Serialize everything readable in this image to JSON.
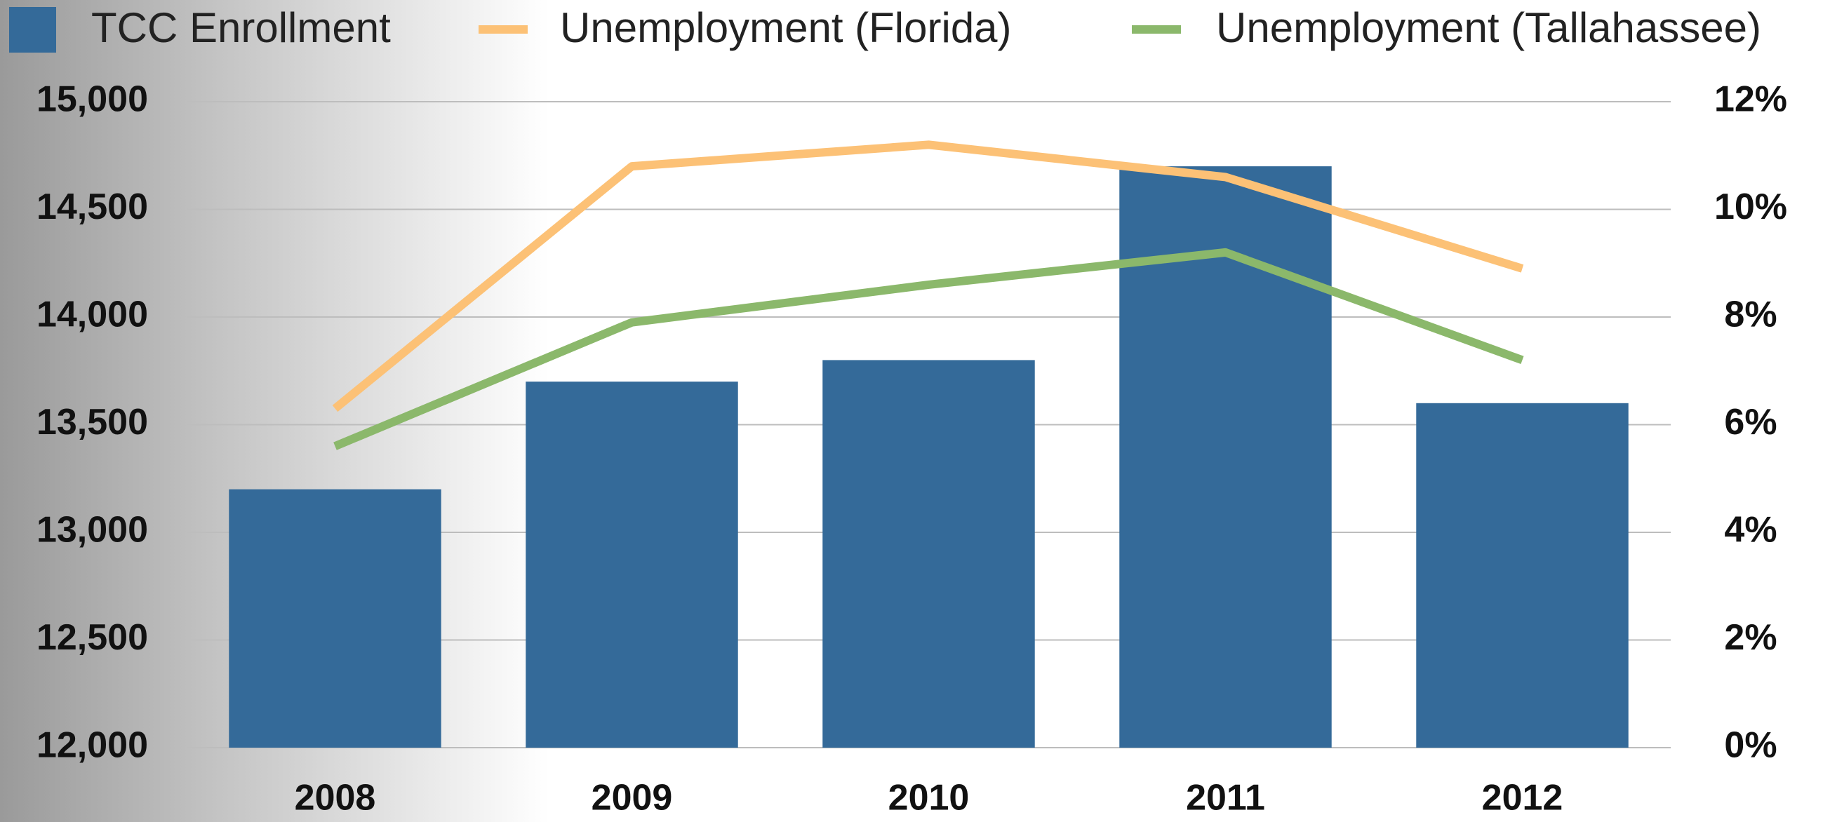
{
  "chart_data": {
    "type": "bar_line",
    "categories": [
      "2008",
      "2009",
      "2010",
      "2011",
      "2012"
    ],
    "series": [
      {
        "name": "TCC Enrollment",
        "type": "bar",
        "color": "#346a99",
        "values": [
          13200,
          13700,
          13800,
          14700,
          13600
        ]
      },
      {
        "name": "Unemployment (Florida)",
        "type": "line",
        "axis": "y2",
        "color": "#fcc176",
        "values": [
          6.3,
          10.8,
          11.2,
          10.6,
          8.9
        ]
      },
      {
        "name": "Unemployment (Tallahassee)",
        "type": "line",
        "axis": "y2",
        "color": "#8bb86b",
        "values": [
          5.6,
          7.9,
          8.6,
          9.2,
          7.2
        ]
      }
    ],
    "ylim": [
      12000,
      15000
    ],
    "yticks": [
      {
        "value": 12000,
        "label": "12,000"
      },
      {
        "value": 12500,
        "label": "12,500"
      },
      {
        "value": 13000,
        "label": "13,000"
      },
      {
        "value": 13500,
        "label": "13,500"
      },
      {
        "value": 14000,
        "label": "14,000"
      },
      {
        "value": 14500,
        "label": "14,500"
      },
      {
        "value": 15000,
        "label": "15,000"
      }
    ],
    "y2lim": [
      0,
      12
    ],
    "y2ticks": [
      {
        "value": 0,
        "label": "0%"
      },
      {
        "value": 2,
        "label": "2%"
      },
      {
        "value": 4,
        "label": "4%"
      },
      {
        "value": 6,
        "label": "6%"
      },
      {
        "value": 8,
        "label": "8%"
      },
      {
        "value": 10,
        "label": "10%"
      },
      {
        "value": 12,
        "label": "12%"
      }
    ],
    "grid": true,
    "legend": "top"
  }
}
